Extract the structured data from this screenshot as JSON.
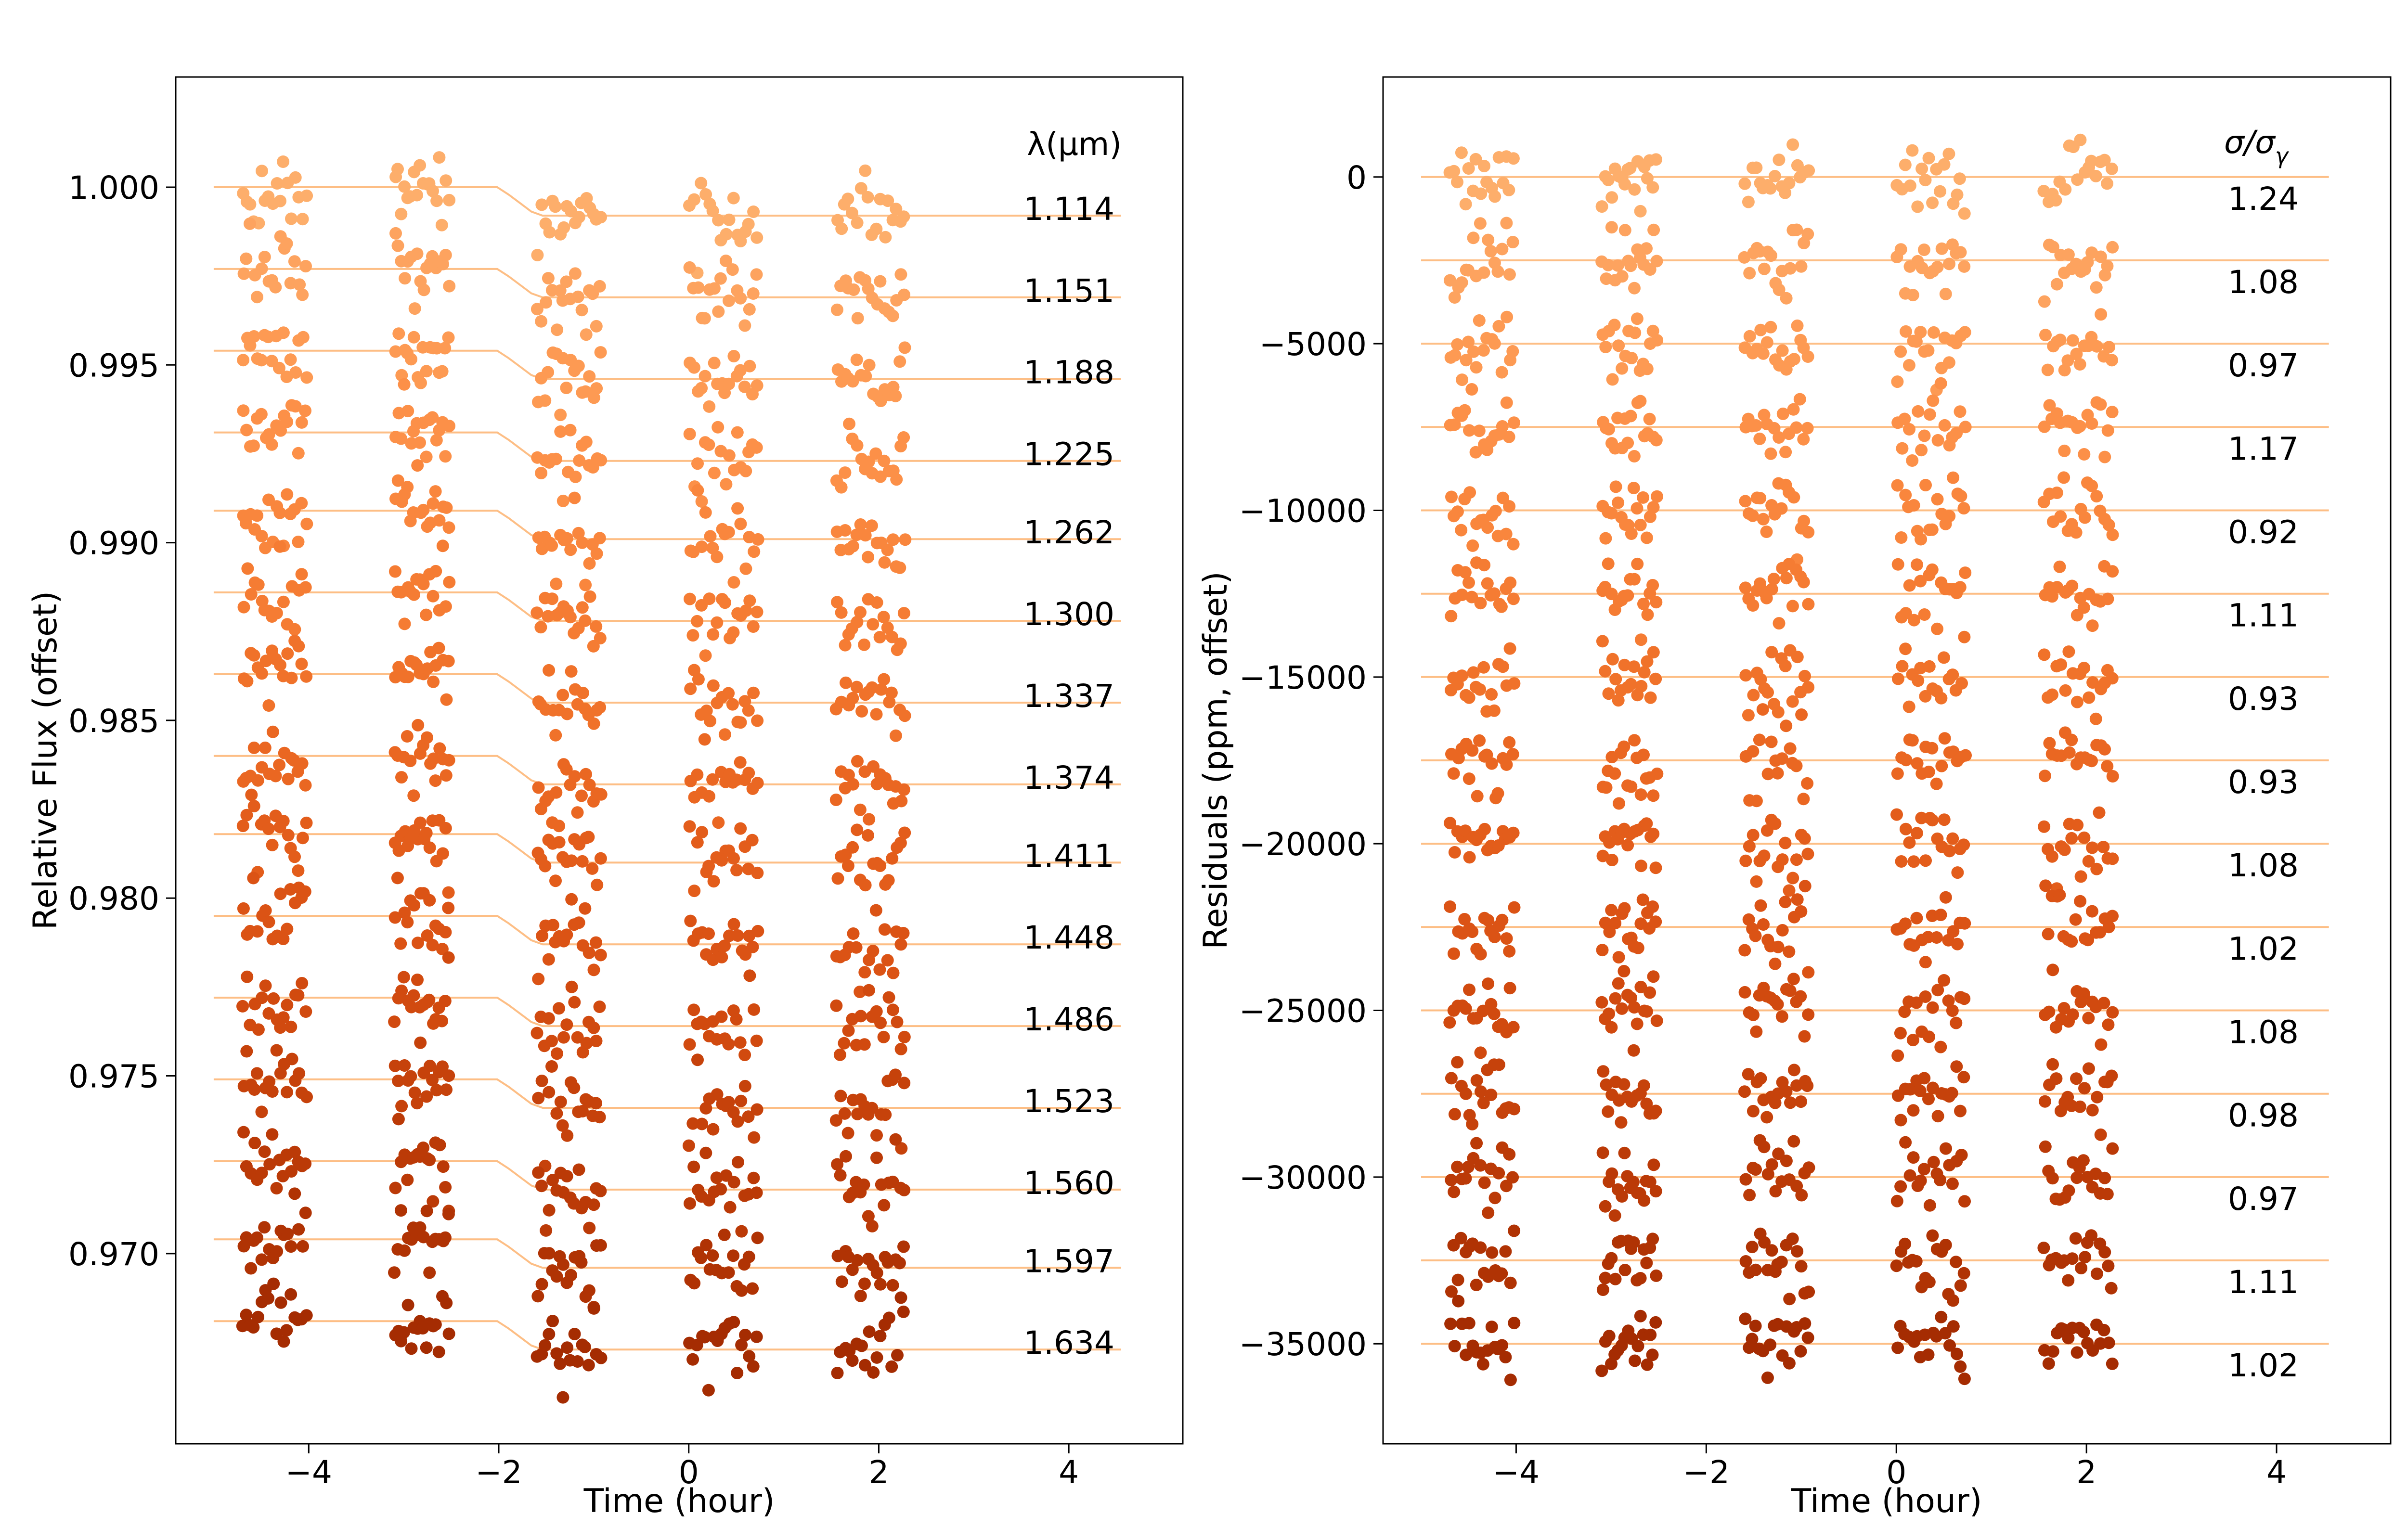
{
  "chart_data": [
    {
      "type": "scatter",
      "name": "light-curves",
      "xlabel": "Time (hour)",
      "ylabel": "Relative Flux (offset)",
      "xlim": [
        -5.4,
        5.2
      ],
      "ylim": [
        0.96465,
        1.0031
      ],
      "xticks": [
        -4,
        -2,
        0,
        2,
        4
      ],
      "xtick_labels": [
        "−4",
        "−2",
        "0",
        "2",
        "4"
      ],
      "yticks": [
        0.97,
        0.975,
        0.98,
        0.985,
        0.99,
        0.995,
        1.0
      ],
      "ytick_labels": [
        "0.970",
        "0.975",
        "0.980",
        "0.985",
        "0.990",
        "0.995",
        "1.000"
      ],
      "column_header": "λ(μm)",
      "row_labels": [
        "1.114",
        "1.151",
        "1.188",
        "1.225",
        "1.262",
        "1.300",
        "1.337",
        "1.374",
        "1.411",
        "1.448",
        "1.486",
        "1.523",
        "1.560",
        "1.597",
        "1.634"
      ],
      "baselines": [
        1.0,
        0.9977,
        0.9954,
        0.9931,
        0.9909,
        0.9886,
        0.9863,
        0.984,
        0.9818,
        0.9795,
        0.9772,
        0.9749,
        0.9726,
        0.9704,
        0.9681
      ],
      "transit_depth": 0.0008,
      "ingress_hours": [
        -2.0,
        -1.6
      ],
      "noise_rms": 0.0005
    },
    {
      "type": "scatter",
      "name": "residuals",
      "xlabel": "Time (hour)",
      "ylabel": "Residuals (ppm, offset)",
      "xlim": [
        -5.4,
        5.2
      ],
      "ylim": [
        -38000,
        3000
      ],
      "xticks": [
        -4,
        -2,
        0,
        2,
        4
      ],
      "xtick_labels": [
        "−4",
        "−2",
        "0",
        "2",
        "4"
      ],
      "yticks": [
        0,
        -5000,
        -10000,
        -15000,
        -20000,
        -25000,
        -30000,
        -35000
      ],
      "ytick_labels": [
        "0",
        "−5000",
        "−10000",
        "−15000",
        "−20000",
        "−25000",
        "−30000",
        "−35000"
      ],
      "column_header": "σ/σ",
      "column_header_sub": "γ",
      "row_labels": [
        "1.24",
        "1.08",
        "0.97",
        "1.17",
        "0.92",
        "1.11",
        "0.93",
        "0.93",
        "1.08",
        "1.02",
        "1.08",
        "0.98",
        "0.97",
        "1.11",
        "1.02"
      ],
      "baselines": [
        0,
        -2500,
        -5000,
        -7500,
        -10000,
        -12500,
        -15000,
        -17500,
        -20000,
        -22500,
        -25000,
        -27500,
        -30000,
        -32500,
        -35000
      ],
      "noise_rms": 500
    }
  ],
  "observation": {
    "orbit_ranges_hours": [
      [
        -4.7,
        -4.0
      ],
      [
        -3.1,
        -2.5
      ],
      [
        -1.6,
        -0.9
      ],
      [
        0.0,
        0.75
      ],
      [
        1.55,
        2.3
      ]
    ],
    "points_per_orbit": 18
  },
  "colors": {
    "model_line": "#fdbe85",
    "row_colors": [
      "#fdae6b",
      "#fda35f",
      "#fd9a53",
      "#fc9048",
      "#f9863d",
      "#f57c33",
      "#f0722a",
      "#ea6722",
      "#e35d1b",
      "#db5315",
      "#d14a0f",
      "#c6420b",
      "#bb3a07",
      "#b03304",
      "#a52c02"
    ]
  }
}
